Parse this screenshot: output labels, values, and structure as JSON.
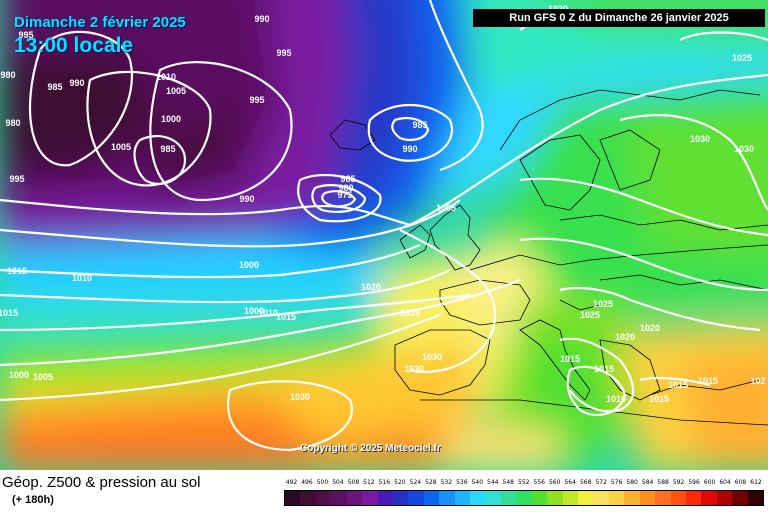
{
  "header": {
    "date": "Dimanche 2 février 2025",
    "local_time": "13:00 locale",
    "run_info": "Run GFS 0 Z du Dimanche 26 janvier 2025"
  },
  "footer": {
    "product": "Géop. Z500 & pression au sol",
    "lead_time": "(+ 180h)",
    "copyright": "Copyright © 2025 Meteociel.fr"
  },
  "scale": {
    "labels": [
      "492",
      "496",
      "500",
      "504",
      "508",
      "512",
      "516",
      "520",
      "524",
      "528",
      "532",
      "536",
      "540",
      "544",
      "548",
      "552",
      "556",
      "560",
      "564",
      "568",
      "572",
      "576",
      "580",
      "584",
      "588",
      "592",
      "596",
      "600",
      "604",
      "608",
      "612"
    ],
    "colors": [
      "#2a0a22",
      "#3d0d33",
      "#4e1046",
      "#5a1060",
      "#6a1480",
      "#7a1aa0",
      "#4a1ab8",
      "#2830c8",
      "#1048e0",
      "#0a66f0",
      "#1a90ff",
      "#20b4ff",
      "#28d8f8",
      "#30e0d0",
      "#30e098",
      "#30e060",
      "#50e030",
      "#90e020",
      "#c0e828",
      "#f0f040",
      "#f8e060",
      "#fcd040",
      "#ffb030",
      "#ff9020",
      "#ff7020",
      "#ff5010",
      "#ff2808",
      "#e00808",
      "#b00000",
      "#700000",
      "#300000"
    ]
  },
  "isobars": [
    {
      "label": "1020",
      "pos": "top"
    },
    {
      "label": "990",
      "pos": "tl"
    },
    {
      "label": "995",
      "pos": "tl"
    },
    {
      "label": "980",
      "pos": "left"
    },
    {
      "label": "985",
      "pos": "left"
    },
    {
      "label": "990",
      "pos": "left"
    },
    {
      "label": "1010",
      "pos": "l"
    },
    {
      "label": "1005",
      "pos": "l"
    },
    {
      "label": "1000",
      "pos": "l"
    },
    {
      "label": "1005",
      "pos": "l"
    },
    {
      "label": "985",
      "pos": "l"
    },
    {
      "label": "995",
      "pos": "l"
    },
    {
      "label": "995",
      "pos": "l"
    },
    {
      "label": "980",
      "pos": "l"
    },
    {
      "label": "985",
      "pos": "c"
    },
    {
      "label": "990",
      "pos": "c"
    },
    {
      "label": "985",
      "pos": "c"
    },
    {
      "label": "980",
      "pos": "c"
    },
    {
      "label": "975",
      "pos": "c"
    },
    {
      "label": "990",
      "pos": "c"
    },
    {
      "label": "1005",
      "pos": "c"
    },
    {
      "label": "1000",
      "pos": "c"
    },
    {
      "label": "1015",
      "pos": "l"
    },
    {
      "label": "1010",
      "pos": "l"
    },
    {
      "label": "1015",
      "pos": "l"
    },
    {
      "label": "1020",
      "pos": "c"
    },
    {
      "label": "1000",
      "pos": "c"
    },
    {
      "label": "1010",
      "pos": "c"
    },
    {
      "label": "1015",
      "pos": "c"
    },
    {
      "label": "1025",
      "pos": "c"
    },
    {
      "label": "1030",
      "pos": "c"
    },
    {
      "label": "1030",
      "pos": "c"
    },
    {
      "label": "1000",
      "pos": "l"
    },
    {
      "label": "1005",
      "pos": "l"
    },
    {
      "label": "1030",
      "pos": "c"
    },
    {
      "label": "1025",
      "pos": "r"
    },
    {
      "label": "1030",
      "pos": "r"
    },
    {
      "label": "1030",
      "pos": "r"
    },
    {
      "label": "1025",
      "pos": "r"
    },
    {
      "label": "1025",
      "pos": "r"
    },
    {
      "label": "1020",
      "pos": "r"
    },
    {
      "label": "1020",
      "pos": "r"
    },
    {
      "label": "1015",
      "pos": "r"
    },
    {
      "label": "1010",
      "pos": "r"
    },
    {
      "label": "1015",
      "pos": "r"
    },
    {
      "label": "1015",
      "pos": "r"
    },
    {
      "label": "1015",
      "pos": "r"
    },
    {
      "label": "1015",
      "pos": "r"
    },
    {
      "label": "102",
      "pos": "r"
    },
    {
      "label": "995",
      "pos": "c"
    }
  ]
}
